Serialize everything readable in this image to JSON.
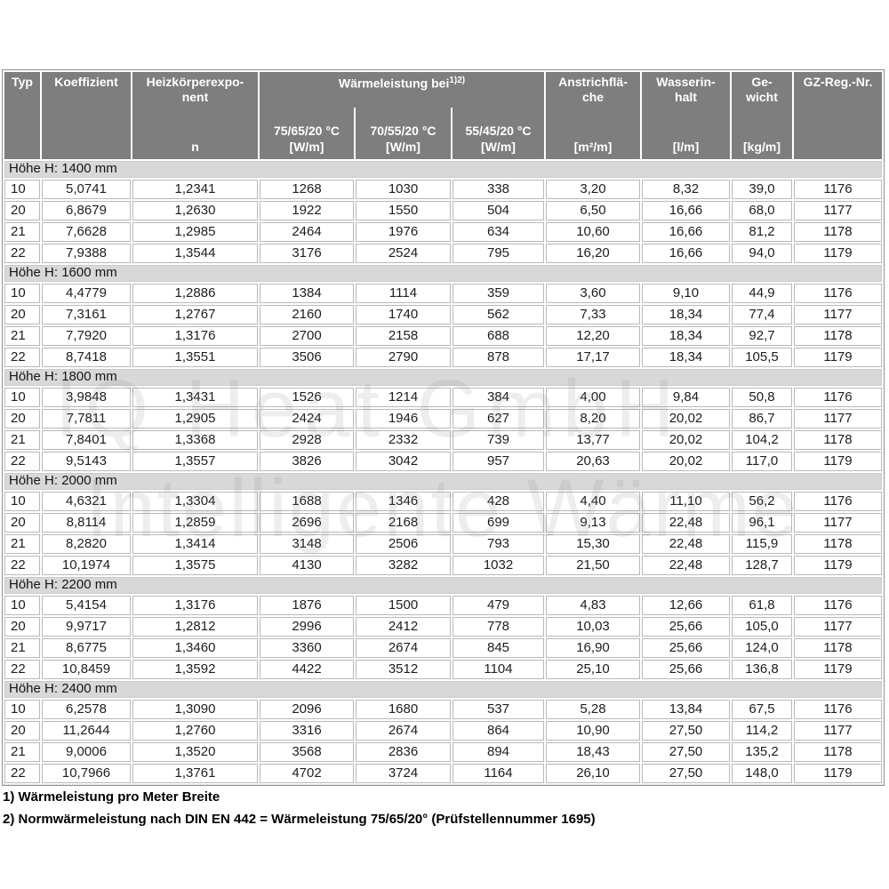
{
  "header": {
    "typ": "Typ",
    "koeffizient": "Koeffizient",
    "exponent_title": "Heizkörperexpo-\nnent",
    "exponent_symbol": "n",
    "group_title": "Wärmeleistung bei",
    "group_sup": "1)2)",
    "temps": [
      "75/65/20 °C",
      "70/55/20 °C",
      "55/45/20 °C"
    ],
    "temp_unit": "[W/m]",
    "anstrich_title": "Anstrichflä-\nche",
    "anstrich_unit": "[m²/m]",
    "wasser_title": "Wasserin-\nhalt",
    "wasser_unit": "[l/m]",
    "gewicht_title": "Ge-\nwicht",
    "gewicht_unit": "[kg/m]",
    "gz": "GZ-Reg.-Nr."
  },
  "column_keys": [
    "typ",
    "koeffizient",
    "n",
    "w75-65-20",
    "w70-55-20",
    "w55-45-20",
    "anstrichflaeche",
    "wasserinhalt",
    "gewicht",
    "gz-reg-nr"
  ],
  "sections": [
    {
      "label": "Höhe H: 1400 mm",
      "rows": [
        [
          "10",
          "5,0741",
          "1,2341",
          "1268",
          "1030",
          "338",
          "3,20",
          "8,32",
          "39,0",
          "1176"
        ],
        [
          "20",
          "6,8679",
          "1,2630",
          "1922",
          "1550",
          "504",
          "6,50",
          "16,66",
          "68,0",
          "1177"
        ],
        [
          "21",
          "7,6628",
          "1,2985",
          "2464",
          "1976",
          "634",
          "10,60",
          "16,66",
          "81,2",
          "1178"
        ],
        [
          "22",
          "7,9388",
          "1,3544",
          "3176",
          "2524",
          "795",
          "16,20",
          "16,66",
          "94,0",
          "1179"
        ]
      ]
    },
    {
      "label": "Höhe H: 1600 mm",
      "rows": [
        [
          "10",
          "4,4779",
          "1,2886",
          "1384",
          "1114",
          "359",
          "3,60",
          "9,10",
          "44,9",
          "1176"
        ],
        [
          "20",
          "7,3161",
          "1,2767",
          "2160",
          "1740",
          "562",
          "7,33",
          "18,34",
          "77,4",
          "1177"
        ],
        [
          "21",
          "7,7920",
          "1,3176",
          "2700",
          "2158",
          "688",
          "12,20",
          "18,34",
          "92,7",
          "1178"
        ],
        [
          "22",
          "8,7418",
          "1,3551",
          "3506",
          "2790",
          "878",
          "17,17",
          "18,34",
          "105,5",
          "1179"
        ]
      ]
    },
    {
      "label": "Höhe H: 1800 mm",
      "rows": [
        [
          "10",
          "3,9848",
          "1,3431",
          "1526",
          "1214",
          "384",
          "4,00",
          "9,84",
          "50,8",
          "1176"
        ],
        [
          "20",
          "7,7811",
          "1,2905",
          "2424",
          "1946",
          "627",
          "8,20",
          "20,02",
          "86,7",
          "1177"
        ],
        [
          "21",
          "7,8401",
          "1,3368",
          "2928",
          "2332",
          "739",
          "13,77",
          "20,02",
          "104,2",
          "1178"
        ],
        [
          "22",
          "9,5143",
          "1,3557",
          "3826",
          "3042",
          "957",
          "20,63",
          "20,02",
          "117,0",
          "1179"
        ]
      ]
    },
    {
      "label": "Höhe H: 2000 mm",
      "rows": [
        [
          "10",
          "4,6321",
          "1,3304",
          "1688",
          "1346",
          "428",
          "4,40",
          "11,10",
          "56,2",
          "1176"
        ],
        [
          "20",
          "8,8114",
          "1,2859",
          "2696",
          "2168",
          "699",
          "9,13",
          "22,48",
          "96,1",
          "1177"
        ],
        [
          "21",
          "8,2820",
          "1,3414",
          "3148",
          "2506",
          "793",
          "15,30",
          "22,48",
          "115,9",
          "1178"
        ],
        [
          "22",
          "10,1974",
          "1,3575",
          "4130",
          "3282",
          "1032",
          "21,50",
          "22,48",
          "128,7",
          "1179"
        ]
      ]
    },
    {
      "label": "Höhe H: 2200 mm",
      "rows": [
        [
          "10",
          "5,4154",
          "1,3176",
          "1876",
          "1500",
          "479",
          "4,83",
          "12,66",
          "61,8",
          "1176"
        ],
        [
          "20",
          "9,9717",
          "1,2812",
          "2996",
          "2412",
          "778",
          "10,03",
          "25,66",
          "105,0",
          "1177"
        ],
        [
          "21",
          "8,6775",
          "1,3460",
          "3360",
          "2674",
          "845",
          "16,90",
          "25,66",
          "124,0",
          "1178"
        ],
        [
          "22",
          "10,8459",
          "1,3592",
          "4422",
          "3512",
          "1104",
          "25,10",
          "25,66",
          "136,8",
          "1179"
        ]
      ]
    },
    {
      "label": "Höhe H: 2400 mm",
      "rows": [
        [
          "10",
          "6,2578",
          "1,3090",
          "2096",
          "1680",
          "537",
          "5,28",
          "13,84",
          "67,5",
          "1176"
        ],
        [
          "20",
          "11,2644",
          "1,2760",
          "3316",
          "2674",
          "864",
          "10,90",
          "27,50",
          "114,2",
          "1177"
        ],
        [
          "21",
          "9,0006",
          "1,3520",
          "3568",
          "2836",
          "894",
          "18,43",
          "27,50",
          "135,2",
          "1178"
        ],
        [
          "22",
          "10,7966",
          "1,3761",
          "4702",
          "3724",
          "1164",
          "26,10",
          "27,50",
          "148,0",
          "1179"
        ]
      ]
    }
  ],
  "footnotes": [
    "1) Wärmeleistung pro Meter Breite",
    "2) Normwärmeleistung nach DIN EN 442 = Wärmeleistung 75/65/20° (Prüfstellennummer 1695)"
  ],
  "watermark": {
    "line1": "IQ Heat GmbH",
    "line2": "Intelligente Wärme"
  },
  "colors": {
    "header_bg": "#7e7e7e",
    "header_text": "#ffffff",
    "section_bg": "#d8d8d8",
    "cell_bg": "#ffffff",
    "cell_border": "#b9b9b9",
    "outer_border": "#8f8f8f",
    "body_text": "#1d1d1d"
  }
}
